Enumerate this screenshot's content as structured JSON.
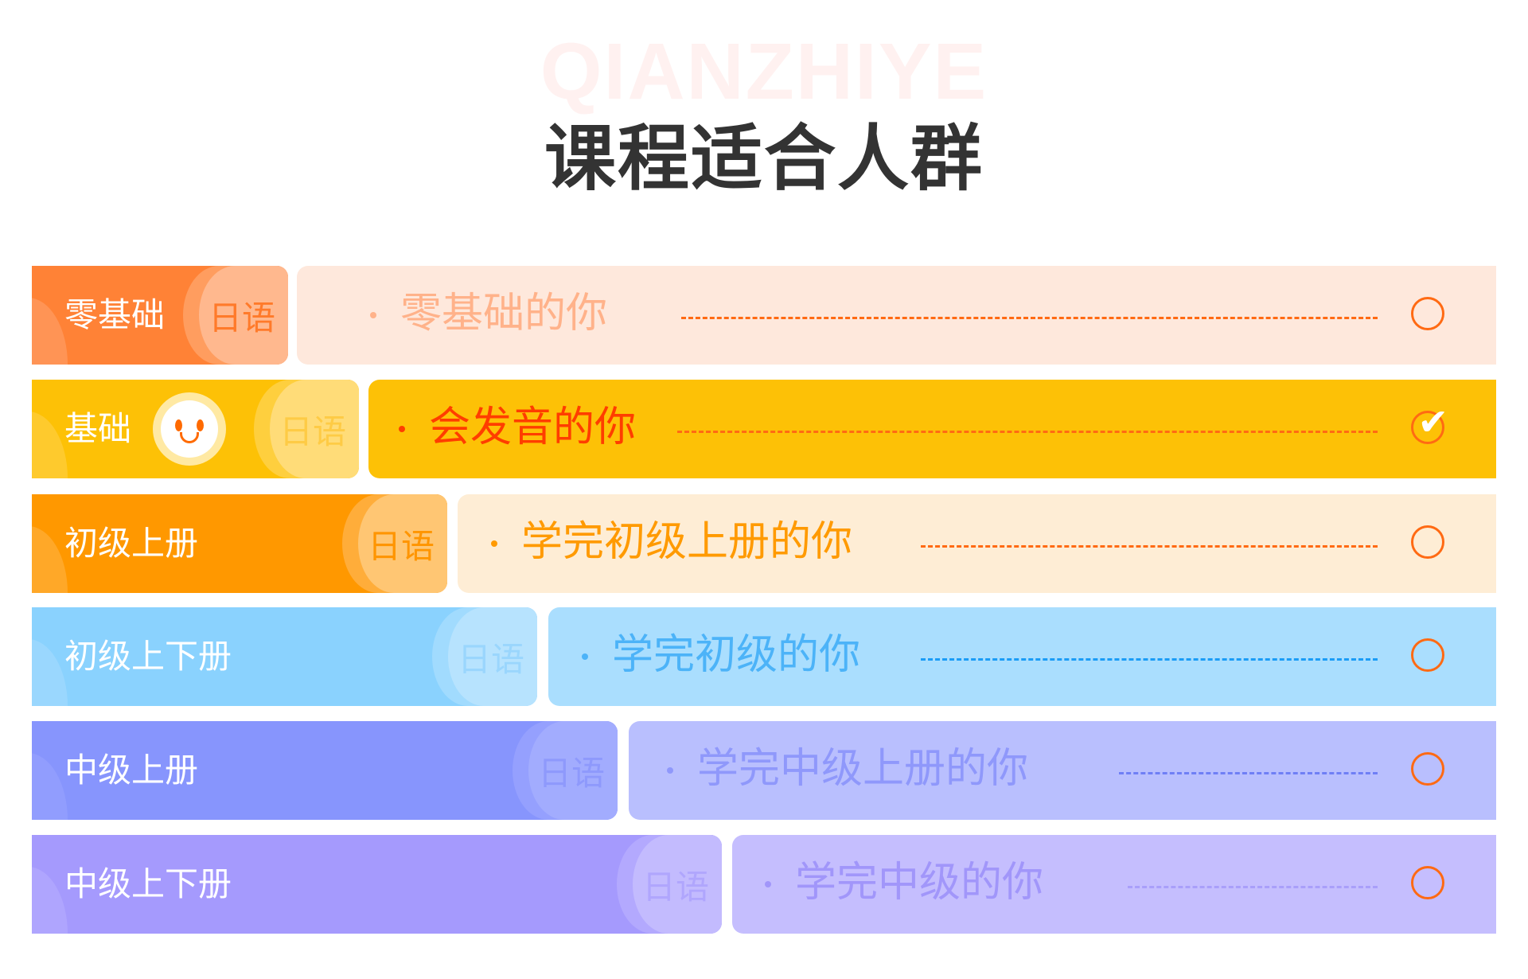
{
  "header": {
    "watermark": "QIANZHIYE",
    "title": "课程适合人群"
  },
  "rows": [
    {
      "level": "零基础",
      "tag": "日语",
      "audience": "零基础的你",
      "selected": false,
      "colors": {
        "left": "#ff8236",
        "pill": "#ffb88e",
        "pill_outer": "#ff9d5f",
        "right": "#fee8dc",
        "text": "#ffb28a",
        "tag": "#ff7a2a",
        "dash": "#ff6a13"
      }
    },
    {
      "level": "基础",
      "tag": "日语",
      "audience": "会发音的你",
      "selected": true,
      "colors": {
        "left": "#fdc106",
        "pill": "#ffdc78",
        "pill_outer": "#fecf3e",
        "right": "#fdc106",
        "text": "#ff3d00",
        "tag": "#fecb45",
        "dash": "#ff6a13"
      }
    },
    {
      "level": "初级上册",
      "tag": "日语",
      "audience": "学完初级上册的你",
      "selected": false,
      "colors": {
        "left": "#ff9800",
        "pill": "#ffc673",
        "pill_outer": "#ffad3a",
        "right": "#feedd5",
        "text": "#ff9a00",
        "tag": "#ff9500",
        "dash": "#ff6a13"
      }
    },
    {
      "level": "初级上下册",
      "tag": "日语",
      "audience": "学完初级的你",
      "selected": false,
      "colors": {
        "left": "#8ad2fe",
        "pill": "#b7e3fe",
        "pill_outer": "#a1dbfe",
        "right": "#aadefe",
        "text": "#4cb3f8",
        "tag": "#9ad6fd",
        "dash": "#1a9cf7"
      }
    },
    {
      "level": "中级上册",
      "tag": "日语",
      "audience": "学完中级上册的你",
      "selected": false,
      "colors": {
        "left": "#8795fd",
        "pill": "#a2acfe",
        "pill_outer": "#95a0fe",
        "right": "#b9bffe",
        "text": "#8f98fb",
        "tag": "#8e99fc",
        "dash": "#6f7ff5"
      }
    },
    {
      "level": "中级上下册",
      "tag": "日语",
      "audience": "学完中级的你",
      "selected": false,
      "colors": {
        "left": "#a59afd",
        "pill": "#c3bbfe",
        "pill_outer": "#b3a9fe",
        "right": "#c5befe",
        "text": "#a196fa",
        "tag": "#b0a6fd",
        "dash": "#a99ffa"
      }
    }
  ],
  "icons": {
    "unselected": "circle-radio-icon",
    "selected": "check-circle-icon",
    "smiley": "smiley-face-icon"
  }
}
